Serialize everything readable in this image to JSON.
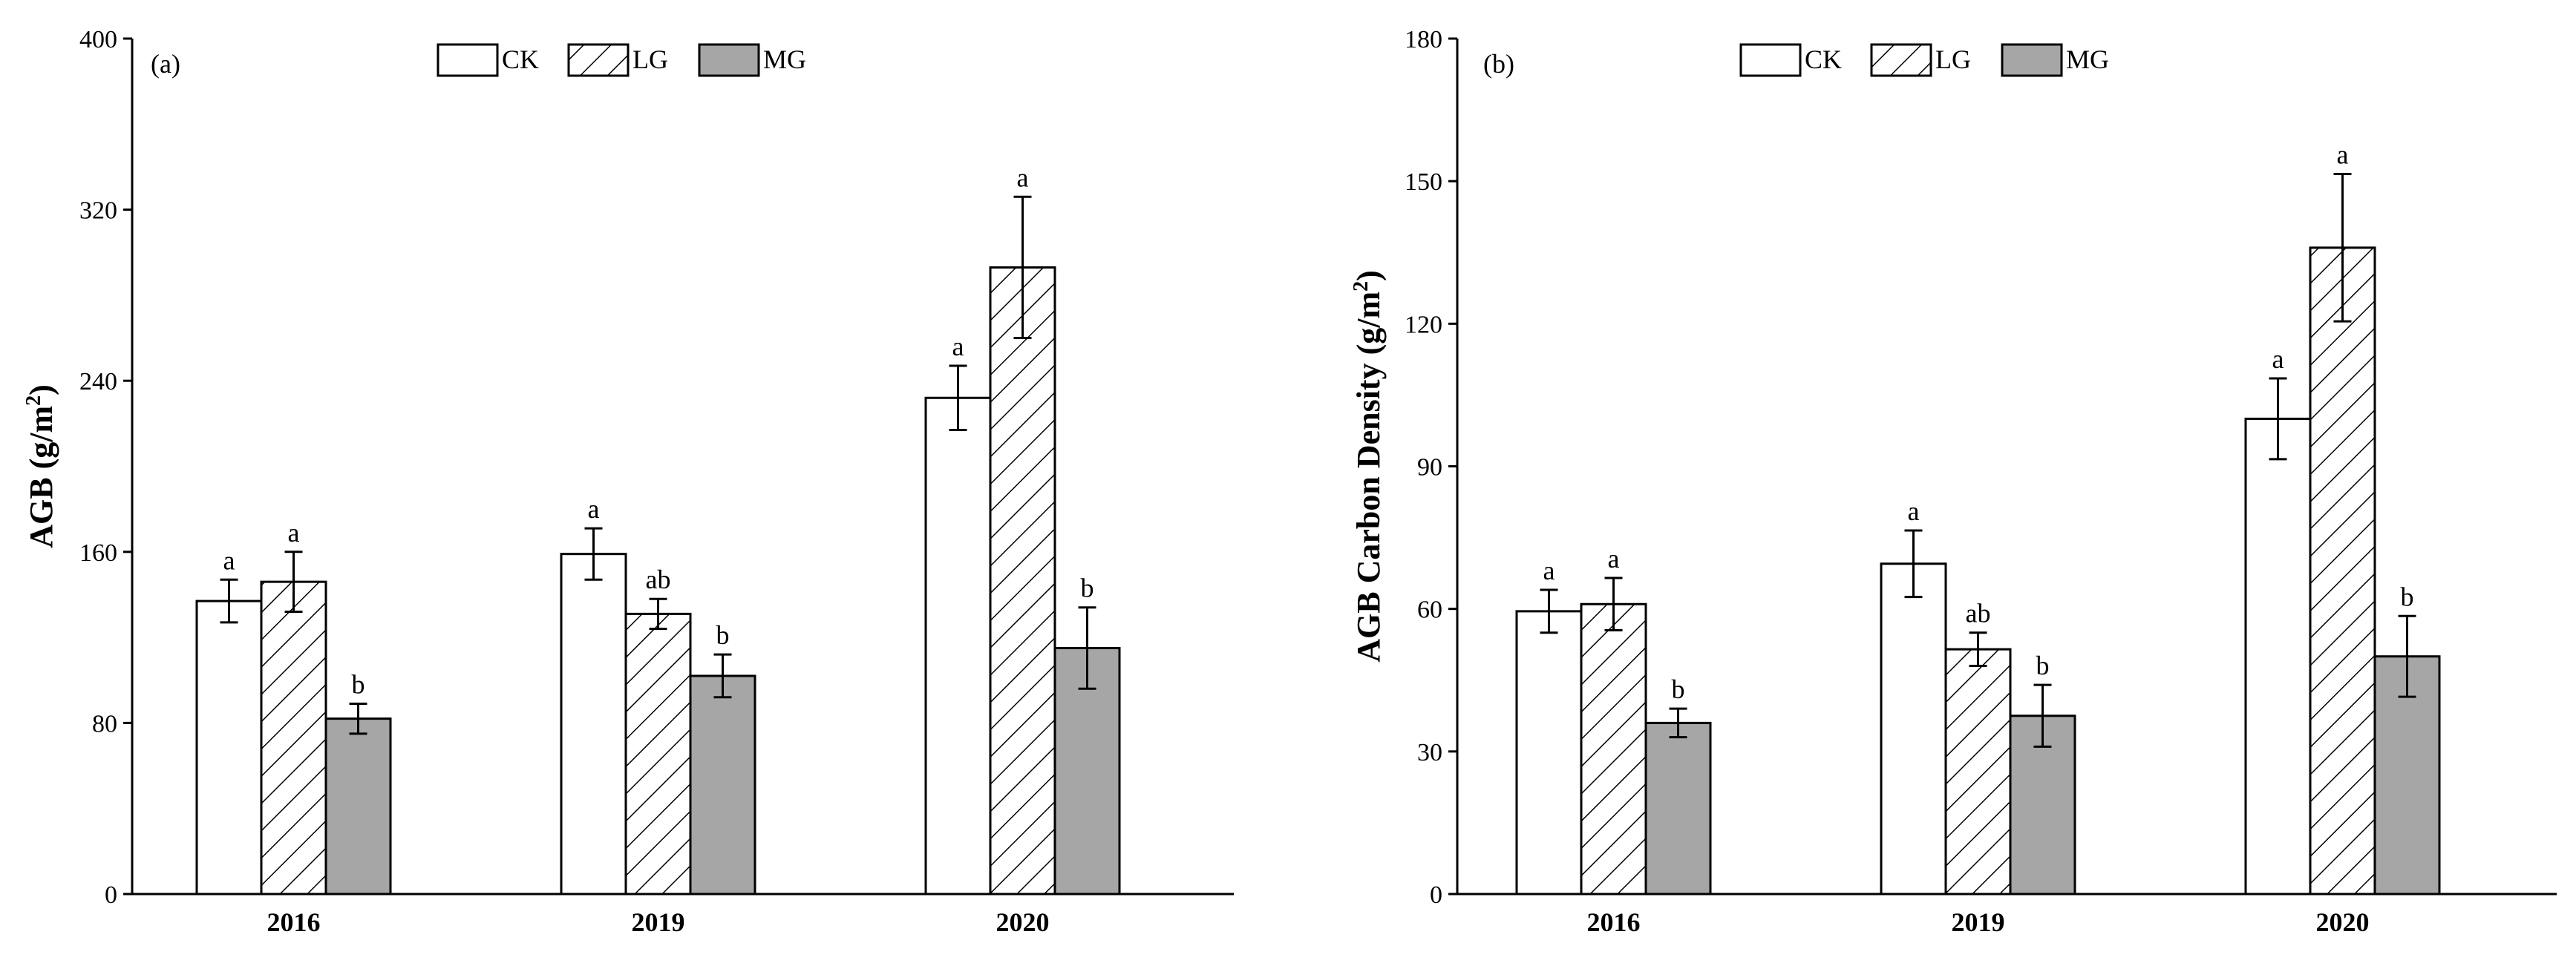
{
  "figure": {
    "colors": {
      "CK": "#ffffff",
      "LG": "#ffffff",
      "MG": "#a6a6a6",
      "stroke": "#000000"
    },
    "legend_position": "top-center"
  },
  "chart_data": [
    {
      "type": "bar",
      "panel_label": "(a)",
      "ylabel_main": "AGB (g/m",
      "ylabel_sup": "2",
      "ylabel_close": ")",
      "xlabel": "",
      "ylim": [
        0,
        400
      ],
      "yticks": [
        0,
        80,
        160,
        240,
        320,
        400
      ],
      "categories": [
        "2016",
        "2019",
        "2020"
      ],
      "series": [
        {
          "name": "CK",
          "values": [
            137,
            159,
            232
          ],
          "errors": [
            10,
            12,
            15
          ],
          "labels": [
            "a",
            "a",
            "a"
          ]
        },
        {
          "name": "LG",
          "values": [
            146,
            131,
            293
          ],
          "errors": [
            14,
            7,
            33
          ],
          "labels": [
            "a",
            "ab",
            "a"
          ]
        },
        {
          "name": "MG",
          "values": [
            82,
            102,
            115
          ],
          "errors": [
            7,
            10,
            19
          ],
          "labels": [
            "b",
            "b",
            "b"
          ]
        }
      ]
    },
    {
      "type": "bar",
      "panel_label": "(b)",
      "ylabel_main": "AGB Carbon Density (g/m",
      "ylabel_sup": "2",
      "ylabel_close": ")",
      "xlabel": "",
      "ylim": [
        0,
        180
      ],
      "yticks": [
        0,
        30,
        60,
        90,
        120,
        150,
        180
      ],
      "categories": [
        "2016",
        "2019",
        "2020"
      ],
      "series": [
        {
          "name": "CK",
          "values": [
            59.5,
            69.5,
            100
          ],
          "errors": [
            4.5,
            7,
            8.5
          ],
          "labels": [
            "a",
            "a",
            "a"
          ]
        },
        {
          "name": "LG",
          "values": [
            61,
            51.5,
            136
          ],
          "errors": [
            5.5,
            3.5,
            15.5
          ],
          "labels": [
            "a",
            "ab",
            "a"
          ]
        },
        {
          "name": "MG",
          "values": [
            36,
            37.5,
            50
          ],
          "errors": [
            3,
            6.5,
            8.5
          ],
          "labels": [
            "b",
            "b",
            "b"
          ]
        }
      ]
    }
  ]
}
